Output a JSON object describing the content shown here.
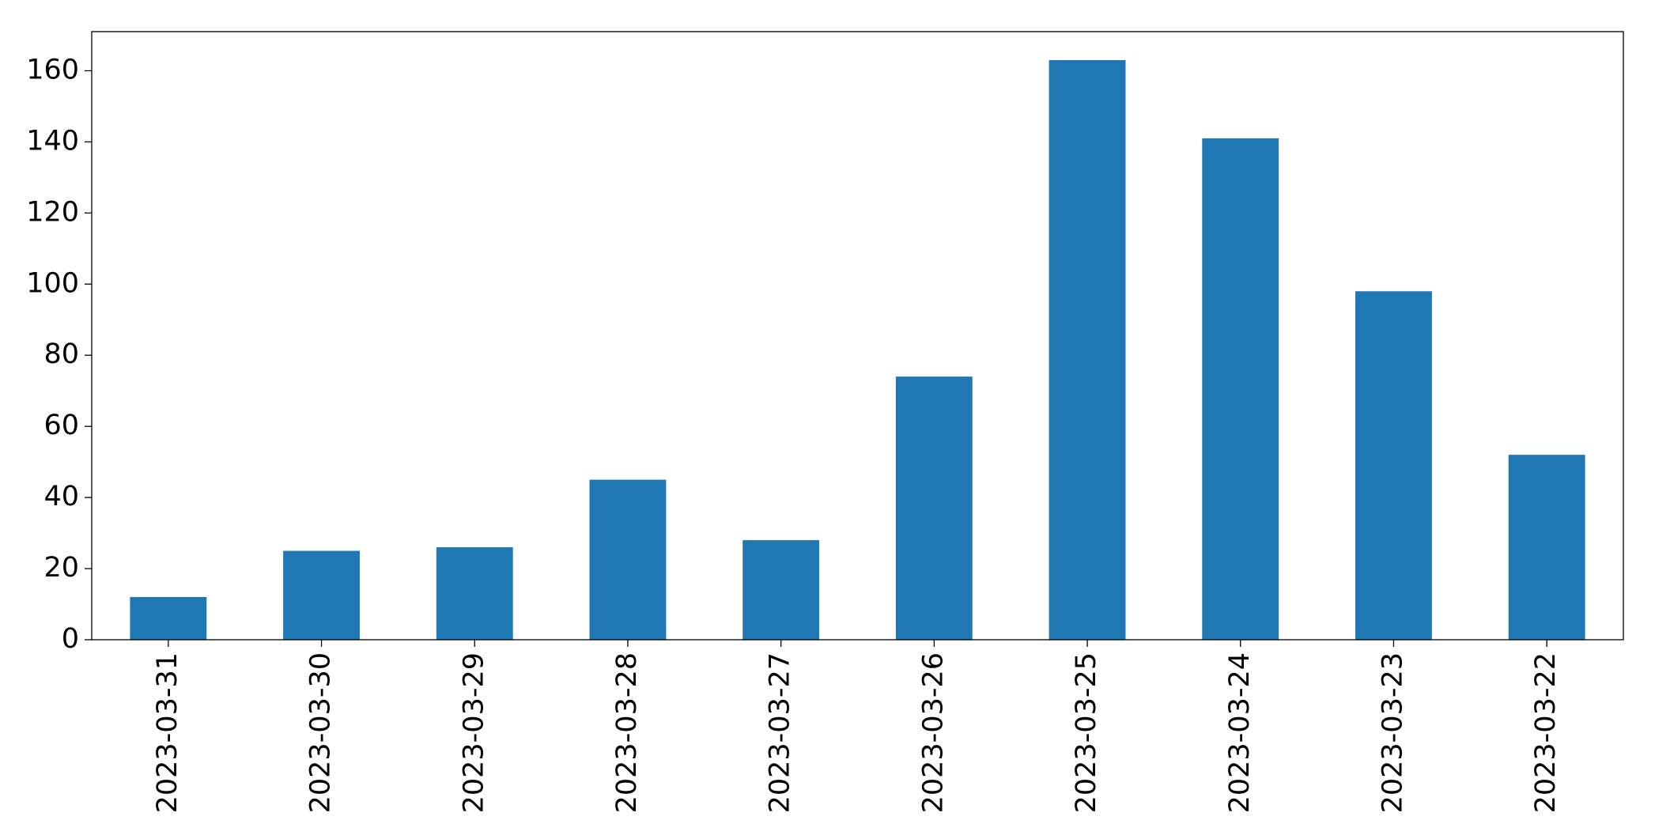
{
  "chart_data": {
    "type": "bar",
    "categories": [
      "2023-03-31",
      "2023-03-30",
      "2023-03-29",
      "2023-03-28",
      "2023-03-27",
      "2023-03-26",
      "2023-03-25",
      "2023-03-24",
      "2023-03-23",
      "2023-03-22"
    ],
    "values": [
      12,
      25,
      26,
      45,
      28,
      74,
      163,
      141,
      98,
      52
    ],
    "color": "#1f77b4",
    "ylim": [
      0,
      171
    ],
    "yticks": [
      0,
      20,
      40,
      60,
      80,
      100,
      120,
      140,
      160
    ],
    "grid": false
  }
}
